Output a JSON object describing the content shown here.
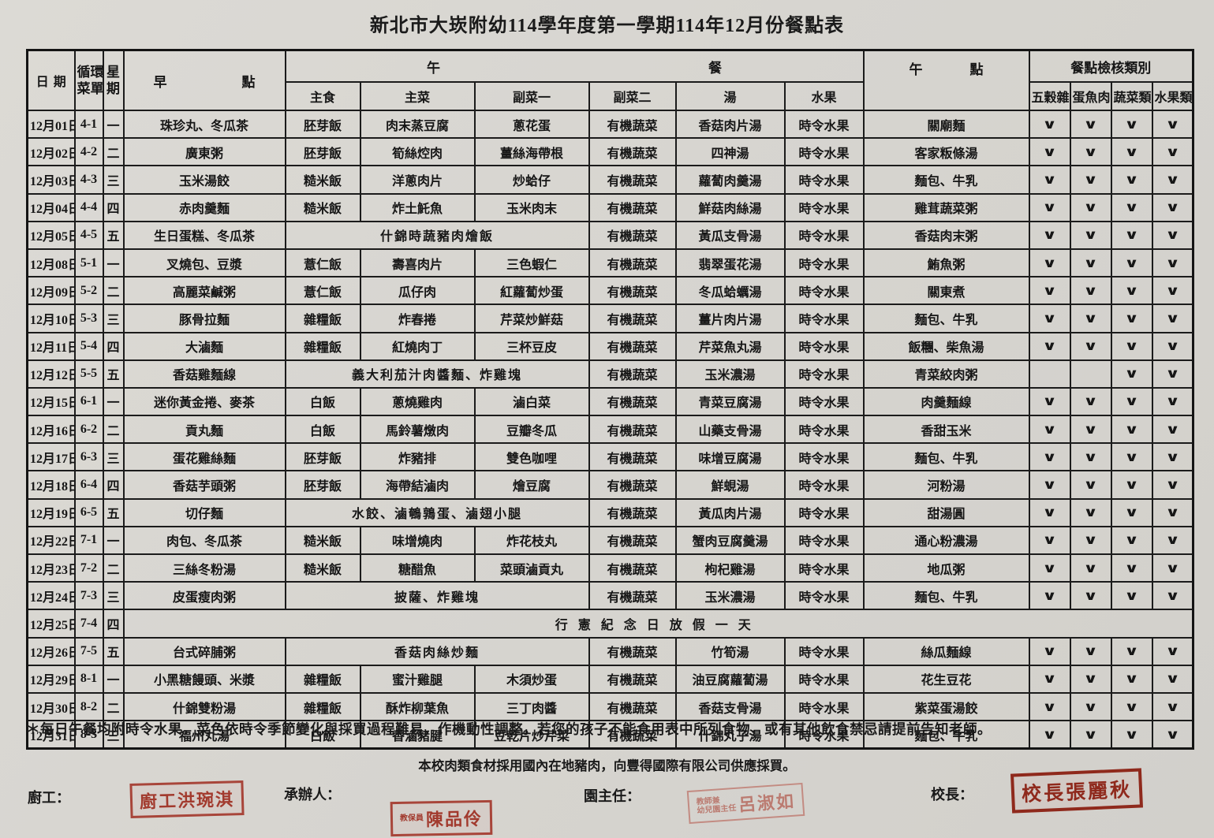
{
  "title": "新北市大崁附幼114學年度第一學期114年12月份餐點表",
  "table": {
    "check_glyph": "∨",
    "header": {
      "col_date": "日期",
      "col_cycle_l1": "循環",
      "col_cycle_l2": "菜單",
      "col_week_l1": "星",
      "col_week_l2": "期",
      "col_breakfast": "早點",
      "group_lunch": "午餐",
      "col_staple": "主食",
      "col_main": "主菜",
      "col_side1": "副菜一",
      "col_side2": "副菜二",
      "col_soup": "湯",
      "col_fruit": "水果",
      "col_snack": "午點",
      "group_check": "餐點檢核類別",
      "check_cols": [
        "五穀雜糧類",
        "蛋魚肉豆類",
        "蔬菜類",
        "水果類"
      ]
    },
    "rows": [
      {
        "date": "12月01日",
        "cycle": "4-1",
        "week": "一",
        "breakfast": "珠珍丸、冬瓜茶",
        "staple": "胚芽飯",
        "main": "肉末蒸豆腐",
        "side1": "蔥花蛋",
        "side2": "有機蔬菜",
        "soup": "香菇肉片湯",
        "fruit": "時令水果",
        "snack": "關廟麵",
        "checks": [
          1,
          1,
          1,
          1
        ]
      },
      {
        "date": "12月02日",
        "cycle": "4-2",
        "week": "二",
        "breakfast": "廣東粥",
        "staple": "胚芽飯",
        "main": "筍絲焢肉",
        "side1": "薑絲海帶根",
        "side2": "有機蔬菜",
        "soup": "四神湯",
        "fruit": "時令水果",
        "snack": "客家粄條湯",
        "checks": [
          1,
          1,
          1,
          1
        ]
      },
      {
        "date": "12月03日",
        "cycle": "4-3",
        "week": "三",
        "breakfast": "玉米湯餃",
        "staple": "糙米飯",
        "main": "洋蔥肉片",
        "side1": "炒蛤仔",
        "side2": "有機蔬菜",
        "soup": "蘿蔔肉羹湯",
        "fruit": "時令水果",
        "snack": "麵包、牛乳",
        "checks": [
          1,
          1,
          1,
          1
        ]
      },
      {
        "date": "12月04日",
        "cycle": "4-4",
        "week": "四",
        "breakfast": "赤肉羹麵",
        "staple": "糙米飯",
        "main": "炸土魠魚",
        "side1": "玉米肉末",
        "side2": "有機蔬菜",
        "soup": "鮮菇肉絲湯",
        "fruit": "時令水果",
        "snack": "雞茸蔬菜粥",
        "checks": [
          1,
          1,
          1,
          1
        ]
      },
      {
        "date": "12月05日",
        "cycle": "4-5",
        "week": "五",
        "breakfast": "生日蛋糕、冬瓜茶",
        "lunch_merged": "什錦時蔬豬肉燴飯",
        "side2": "有機蔬菜",
        "soup": "黃瓜支骨湯",
        "fruit": "時令水果",
        "snack": "香菇肉末粥",
        "checks": [
          1,
          1,
          1,
          1
        ]
      },
      {
        "date": "12月08日",
        "cycle": "5-1",
        "week": "一",
        "breakfast": "叉燒包、豆漿",
        "staple": "薏仁飯",
        "main": "壽喜肉片",
        "side1": "三色蝦仁",
        "side2": "有機蔬菜",
        "soup": "翡翠蛋花湯",
        "fruit": "時令水果",
        "snack": "鮪魚粥",
        "checks": [
          1,
          1,
          1,
          1
        ]
      },
      {
        "date": "12月09日",
        "cycle": "5-2",
        "week": "二",
        "breakfast": "高麗菜鹹粥",
        "staple": "薏仁飯",
        "main": "瓜仔肉",
        "side1": "紅蘿蔔炒蛋",
        "side2": "有機蔬菜",
        "soup": "冬瓜蛤蠣湯",
        "fruit": "時令水果",
        "snack": "關東煮",
        "checks": [
          1,
          1,
          1,
          1
        ]
      },
      {
        "date": "12月10日",
        "cycle": "5-3",
        "week": "三",
        "breakfast": "豚骨拉麵",
        "staple": "雜糧飯",
        "main": "炸春捲",
        "side1": "芹菜炒鮮菇",
        "side2": "有機蔬菜",
        "soup": "薑片肉片湯",
        "fruit": "時令水果",
        "snack": "麵包、牛乳",
        "checks": [
          1,
          1,
          1,
          1
        ]
      },
      {
        "date": "12月11日",
        "cycle": "5-4",
        "week": "四",
        "breakfast": "大滷麵",
        "staple": "雜糧飯",
        "main": "紅燒肉丁",
        "side1": "三杯豆皮",
        "side2": "有機蔬菜",
        "soup": "芹菜魚丸湯",
        "fruit": "時令水果",
        "snack": "飯糰、柴魚湯",
        "checks": [
          1,
          1,
          1,
          1
        ]
      },
      {
        "date": "12月12日",
        "cycle": "5-5",
        "week": "五",
        "breakfast": "香菇雞麵線",
        "lunch_merged": "義大利茄汁肉醬麵、炸雞塊",
        "side2": "有機蔬菜",
        "soup": "玉米濃湯",
        "fruit": "時令水果",
        "snack": "青菜絞肉粥",
        "checks": [
          0,
          0,
          1,
          1
        ]
      },
      {
        "date": "12月15日",
        "cycle": "6-1",
        "week": "一",
        "breakfast": "迷你黃金捲、麥茶",
        "staple": "白飯",
        "main": "蔥燒雞肉",
        "side1": "滷白菜",
        "side2": "有機蔬菜",
        "soup": "青菜豆腐湯",
        "fruit": "時令水果",
        "snack": "肉羹麵線",
        "checks": [
          1,
          1,
          1,
          1
        ]
      },
      {
        "date": "12月16日",
        "cycle": "6-2",
        "week": "二",
        "breakfast": "貢丸麵",
        "staple": "白飯",
        "main": "馬鈴薯燉肉",
        "side1": "豆瓣冬瓜",
        "side2": "有機蔬菜",
        "soup": "山藥支骨湯",
        "fruit": "時令水果",
        "snack": "香甜玉米",
        "checks": [
          1,
          1,
          1,
          1
        ]
      },
      {
        "date": "12月17日",
        "cycle": "6-3",
        "week": "三",
        "breakfast": "蛋花雞絲麵",
        "staple": "胚芽飯",
        "main": "炸豬排",
        "side1": "雙色咖哩",
        "side2": "有機蔬菜",
        "soup": "味增豆腐湯",
        "fruit": "時令水果",
        "snack": "麵包、牛乳",
        "checks": [
          1,
          1,
          1,
          1
        ]
      },
      {
        "date": "12月18日",
        "cycle": "6-4",
        "week": "四",
        "breakfast": "香菇芋頭粥",
        "staple": "胚芽飯",
        "main": "海帶結滷肉",
        "side1": "燴豆腐",
        "side2": "有機蔬菜",
        "soup": "鮮蜆湯",
        "fruit": "時令水果",
        "snack": "河粉湯",
        "checks": [
          1,
          1,
          1,
          1
        ]
      },
      {
        "date": "12月19日",
        "cycle": "6-5",
        "week": "五",
        "breakfast": "切仔麵",
        "lunch_merged": "水餃、滷鵪鶉蛋、滷翅小腿",
        "side2": "有機蔬菜",
        "soup": "黃瓜肉片湯",
        "fruit": "時令水果",
        "snack": "甜湯圓",
        "checks": [
          1,
          1,
          1,
          1
        ]
      },
      {
        "date": "12月22日",
        "cycle": "7-1",
        "week": "一",
        "breakfast": "肉包、冬瓜茶",
        "staple": "糙米飯",
        "main": "味增燒肉",
        "side1": "炸花枝丸",
        "side2": "有機蔬菜",
        "soup": "蟹肉豆腐羹湯",
        "fruit": "時令水果",
        "snack": "通心粉濃湯",
        "checks": [
          1,
          1,
          1,
          1
        ]
      },
      {
        "date": "12月23日",
        "cycle": "7-2",
        "week": "二",
        "breakfast": "三絲冬粉湯",
        "staple": "糙米飯",
        "main": "糖醋魚",
        "side1": "菜頭滷貢丸",
        "side2": "有機蔬菜",
        "soup": "枸杞雞湯",
        "fruit": "時令水果",
        "snack": "地瓜粥",
        "checks": [
          1,
          1,
          1,
          1
        ]
      },
      {
        "date": "12月24日",
        "cycle": "7-3",
        "week": "三",
        "breakfast": "皮蛋瘦肉粥",
        "lunch_merged": "披薩、炸雞塊",
        "side2": "有機蔬菜",
        "soup": "玉米濃湯",
        "fruit": "時令水果",
        "snack": "麵包、牛乳",
        "checks": [
          1,
          1,
          1,
          1
        ]
      },
      {
        "date": "12月25日",
        "cycle": "7-4",
        "week": "四",
        "holiday": "行憲紀念日放假一天"
      },
      {
        "date": "12月26日",
        "cycle": "7-5",
        "week": "五",
        "breakfast": "台式碎脯粥",
        "lunch_merged": "香菇肉絲炒麵",
        "side2": "有機蔬菜",
        "soup": "竹筍湯",
        "fruit": "時令水果",
        "snack": "絲瓜麵線",
        "checks": [
          1,
          1,
          1,
          1
        ]
      },
      {
        "date": "12月29日",
        "cycle": "8-1",
        "week": "一",
        "breakfast": "小黑糖饅頭、米漿",
        "staple": "雜糧飯",
        "main": "蜜汁雞腿",
        "side1": "木須炒蛋",
        "side2": "有機蔬菜",
        "soup": "油豆腐蘿蔔湯",
        "fruit": "時令水果",
        "snack": "花生豆花",
        "checks": [
          1,
          1,
          1,
          1
        ]
      },
      {
        "date": "12月30日",
        "cycle": "8-2",
        "week": "二",
        "breakfast": "什錦雙粉湯",
        "staple": "雜糧飯",
        "main": "酥炸柳葉魚",
        "side1": "三丁肉醬",
        "side2": "有機蔬菜",
        "soup": "香菇支骨湯",
        "fruit": "時令水果",
        "snack": "紫菜蛋湯餃",
        "checks": [
          1,
          1,
          1,
          1
        ]
      },
      {
        "date": "12月31日",
        "cycle": "8-3",
        "week": "三",
        "breakfast": "福州丸湯",
        "staple": "白飯",
        "main": "香滷豬腱",
        "side1": "豆乾片炒芹菜",
        "side2": "有機蔬菜",
        "soup": "什錦丸子湯",
        "fruit": "時令水果",
        "snack": "麵包、牛乳",
        "checks": [
          1,
          1,
          1,
          1
        ]
      }
    ]
  },
  "notes": {
    "note1": "＊每日午餐均附時令水果。菜色依時令季節變化與採買過程難易，作機動性調整。若您的孩子不能食用表中所列食物，或有其他飲食禁忌請提前告知老師。",
    "note2": "本校肉類食材採用國內在地豬肉，向豐得國際有限公司供應採買。"
  },
  "signatures": {
    "cook_label": "廚工：",
    "cook_stamp": "廚工洪琬淇",
    "handler_label": "承辦人：",
    "handler_stamp_role": "教保員",
    "handler_stamp_name": "陳品伶",
    "director_label": "園主任：",
    "director_stamp_role_l1": "教師兼",
    "director_stamp_role_l2": "幼兒園主任",
    "director_stamp_name": "呂淑如",
    "principal_label": "校長：",
    "principal_stamp": "校長張麗秋"
  },
  "colors": {
    "paper": "#d8d6d1",
    "ink": "#1a1a1a",
    "stamp_red": "#a23a2e",
    "stamp_red_bold": "#8f291c",
    "stamp_red_faded": "#bb7b71"
  }
}
